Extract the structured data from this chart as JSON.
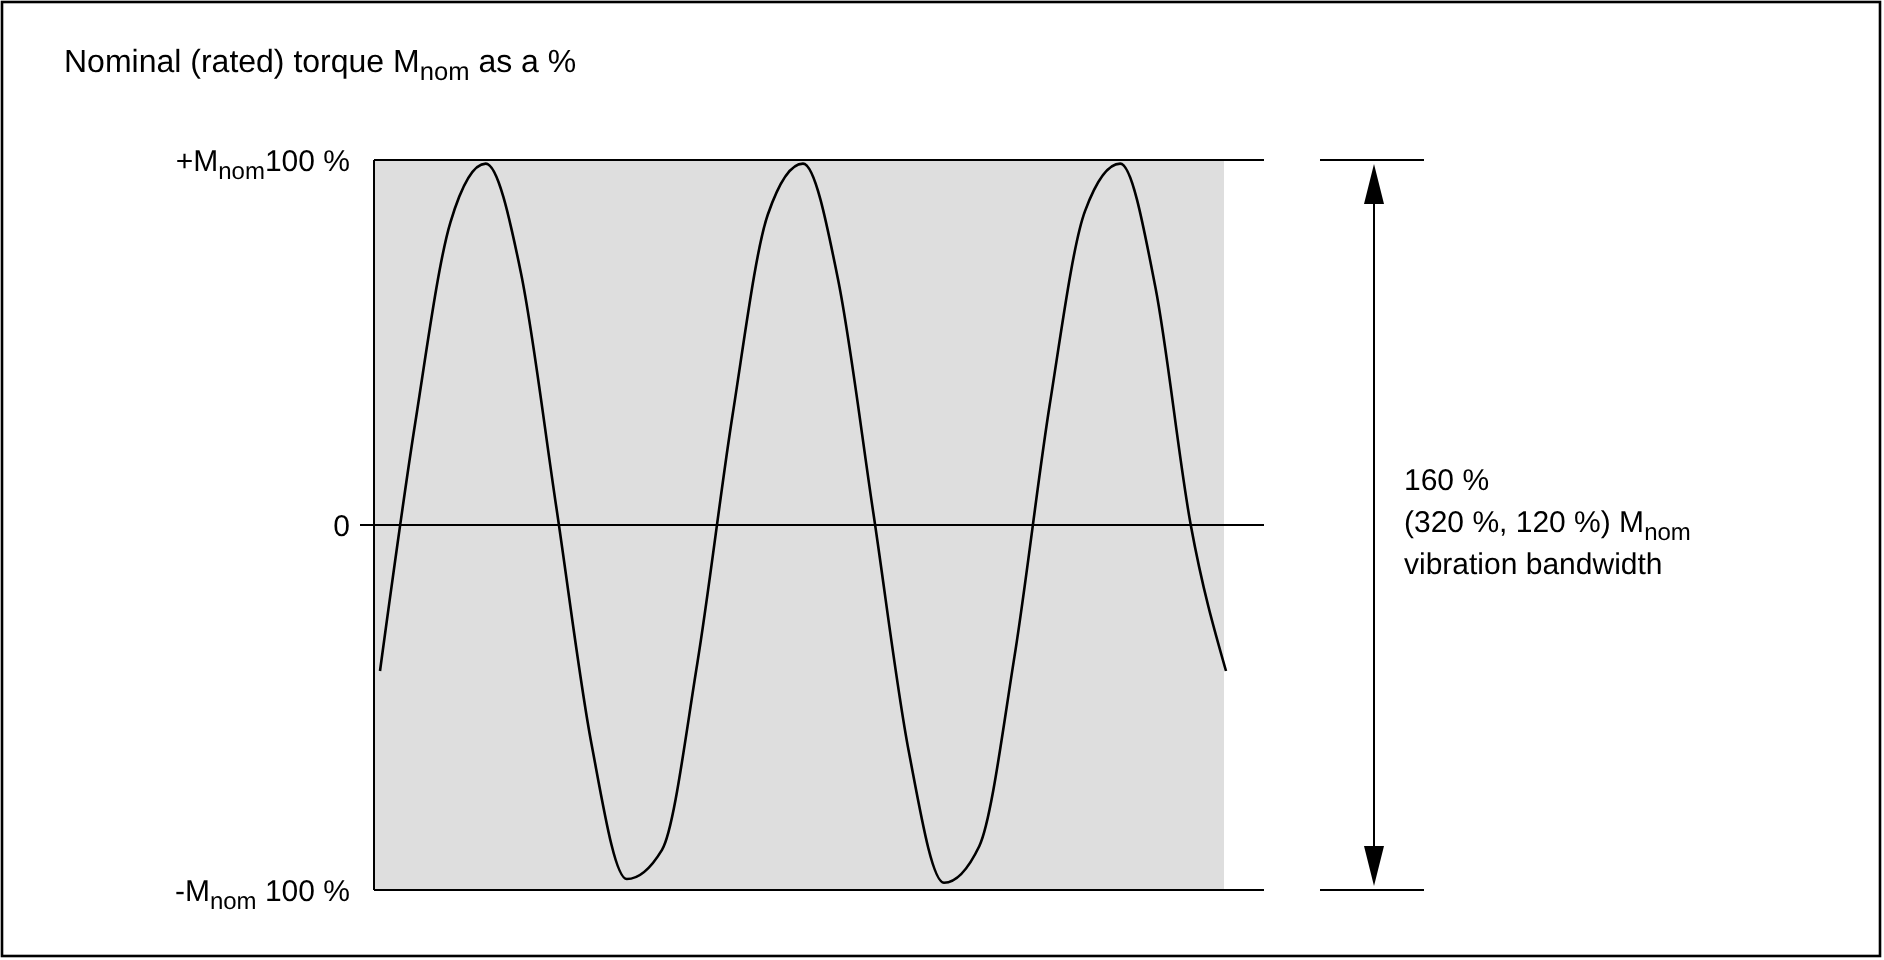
{
  "chart_data": {
    "type": "line",
    "title": "Nominal (rated) torque M$_{nom}$ as a %",
    "categories": [
      null,
      null,
      null,
      null,
      null,
      null,
      null,
      null,
      null,
      null,
      null,
      null,
      null,
      null,
      null,
      null,
      null,
      null,
      null,
      null,
      null,
      null,
      null,
      null,
      null
    ],
    "series": [
      {
        "color": "#000000",
        "values": [
          -40,
          28,
          83,
          99,
          69,
          5,
          -60,
          -97,
          -89,
          -38,
          30,
          85,
          99,
          67,
          3,
          -62,
          -98,
          -88,
          -36,
          33,
          86,
          99,
          65,
          0,
          -40
        ]
      }
    ],
    "ylim": [
      -100,
      100
    ],
    "yticks": [
      {
        "value": 100,
        "label": "+M$_{nom}$100 %"
      },
      {
        "value": 0,
        "label": "0"
      },
      {
        "value": -100,
        "label": "-M$_{nom}$ 100 %"
      }
    ],
    "bands": [
      {
        "axis": "y",
        "from": -100,
        "to": 100,
        "color": "#dedede"
      }
    ],
    "ref_lines": [
      {
        "axis": "y",
        "value": 0,
        "color": "#000000"
      }
    ],
    "annotations": [
      "160 %",
      "(320 %, 120 %) M$_{nom}$",
      "vibration bandwidth"
    ],
    "grid": false,
    "marker": "none",
    "line_style": "solid"
  }
}
